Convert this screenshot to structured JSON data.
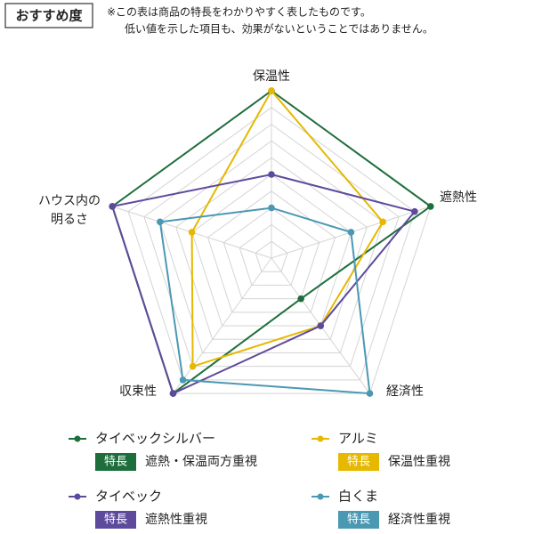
{
  "chart_data": {
    "type": "radar",
    "title": "おすすめ度",
    "notes": [
      "※この表は商品の特長をわかりやすく表したものです。",
      "低い値を示した項目も、効果がないということではありません。"
    ],
    "categories": [
      [
        "保温性"
      ],
      [
        "遮熱性"
      ],
      [
        "経済性"
      ],
      [
        "収束性"
      ],
      [
        "ハウス内の",
        "明るさ"
      ]
    ],
    "ylim": [
      0,
      10
    ],
    "yticks": [
      1,
      2,
      3,
      4,
      5,
      6,
      7,
      8,
      9,
      10
    ],
    "grid": true,
    "series": [
      {
        "name": "タイベックシルバー",
        "color": "#1e6e3c",
        "values": [
          10,
          10,
          3,
          10,
          10
        ],
        "badge": "特長",
        "feature": "遮熱・保温両方重視"
      },
      {
        "name": "アルミ",
        "color": "#e6b800",
        "values": [
          10,
          7,
          5,
          8,
          5
        ],
        "badge": "特長",
        "feature": "保温性重視"
      },
      {
        "name": "タイベック",
        "color": "#5e4a9c",
        "values": [
          5,
          9,
          5,
          10,
          10
        ],
        "badge": "特長",
        "feature": "遮熱性重視"
      },
      {
        "name": "白くま",
        "color": "#4b98b3",
        "values": [
          3,
          5,
          10,
          9,
          7
        ],
        "badge": "特長",
        "feature": "経済性重視"
      }
    ]
  }
}
